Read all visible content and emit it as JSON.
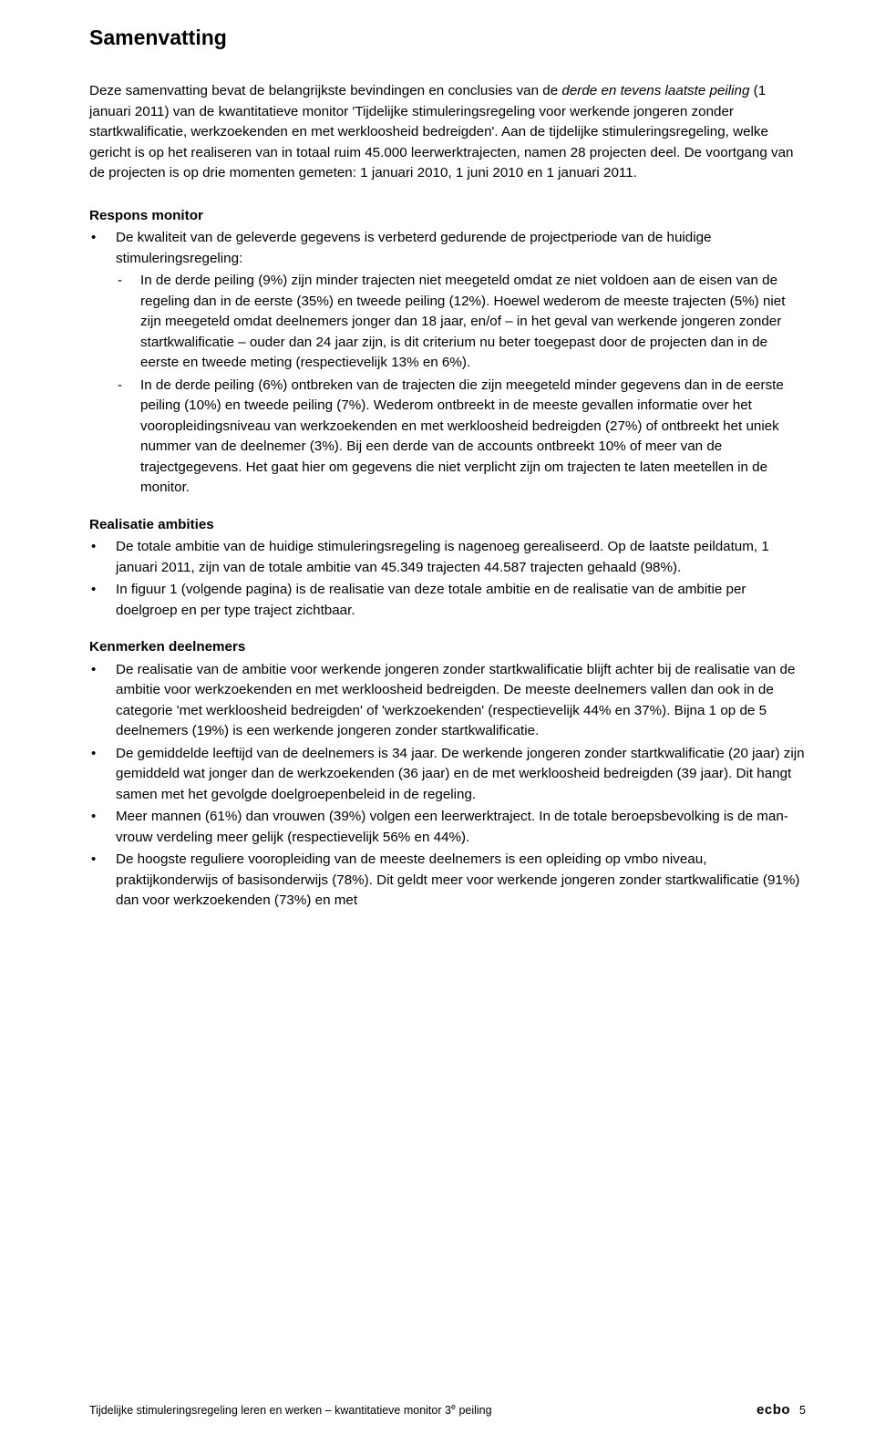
{
  "colors": {
    "text": "#000000",
    "background": "#ffffff"
  },
  "typography": {
    "body_font": "Arial",
    "body_size_pt": 11,
    "title_size_pt": 17,
    "line_height": 1.48
  },
  "title": "Samenvatting",
  "intro": {
    "pre_italic1": "Deze samenvatting bevat de belangrijkste bevindingen en conclusies van de ",
    "italic1": "derde en tevens laatste peiling",
    "mid": " (1 januari 2011) van de kwantitatieve monitor 'Tijdelijke stimuleringsregeling voor werkende jongeren zonder startkwalificatie, werkzoekenden en met werkloosheid bedreigden'. Aan de tijdelijke stimuleringsregeling, welke gericht is op het realiseren van in totaal ruim 45.000 leerwerktrajecten, namen 28 projecten deel. De voortgang van de projecten is op drie momenten gemeten: 1 januari 2010, 1 juni 2010 en 1 januari 2011."
  },
  "sections": {
    "respons": {
      "heading": "Respons monitor",
      "b0_lead": "De kwaliteit van de geleverde gegevens is verbeterd gedurende de projectperiode van de huidige stimuleringsregeling:",
      "b0_d0": "In de derde peiling (9%) zijn minder trajecten niet meegeteld omdat ze niet voldoen aan de eisen van de regeling dan in de eerste (35%) en tweede peiling (12%). Hoewel wederom de meeste trajecten (5%) niet zijn meegeteld omdat deelnemers jonger dan 18 jaar, en/of – in het geval van werkende jongeren zonder startkwalificatie – ouder dan 24 jaar zijn, is dit criterium nu beter toegepast door de projecten dan in de eerste en tweede meting (respectievelijk 13% en 6%).",
      "b0_d1": "In de derde peiling (6%) ontbreken van de trajecten die zijn meegeteld minder gegevens dan in de eerste peiling (10%) en tweede peiling (7%). Wederom ontbreekt in de meeste gevallen informatie over het vooropleidingsniveau van werkzoekenden en met werkloosheid bedreigden (27%) of ontbreekt het uniek nummer van de deelnemer (3%). Bij een derde van de accounts ontbreekt 10% of meer van de trajectgegevens. Het gaat hier om gegevens die niet verplicht zijn om trajecten te laten meetellen in de monitor."
    },
    "realisatie": {
      "heading": "Realisatie ambities",
      "b0": "De totale ambitie van de huidige stimuleringsregeling is nagenoeg gerealiseerd. Op de laatste peildatum, 1 januari 2011, zijn van de totale ambitie van 45.349 trajecten 44.587 trajecten gehaald (98%).",
      "b1": "In figuur 1 (volgende pagina) is de realisatie van deze totale ambitie en de realisatie van de ambitie per doelgroep en per type traject zichtbaar."
    },
    "kenmerken": {
      "heading": "Kenmerken deelnemers",
      "b0": "De realisatie van de ambitie voor werkende jongeren zonder startkwalificatie blijft achter bij de realisatie van de ambitie voor werkzoekenden en met werkloosheid bedreigden. De meeste deelnemers vallen dan ook in de categorie 'met werkloosheid bedreigden' of 'werkzoekenden' (respectievelijk 44% en 37%). Bijna 1 op de 5 deelnemers (19%) is een werkende jongeren zonder startkwalificatie.",
      "b1": "De gemiddelde leeftijd van de deelnemers is 34 jaar. De werkende jongeren zonder startkwalificatie (20 jaar) zijn gemiddeld wat jonger dan de werkzoekenden (36 jaar) en de met werkloosheid bedreigden (39 jaar). Dit hangt samen met het gevolgde doelgroepenbeleid in de regeling.",
      "b2": "Meer mannen (61%) dan vrouwen (39%) volgen een leerwerktraject. In de totale beroepsbevolking is de man-vrouw verdeling meer gelijk (respectievelijk 56% en 44%).",
      "b3": "De hoogste reguliere vooropleiding van de meeste deelnemers is een opleiding op vmbo niveau, praktijkonderwijs of basisonderwijs (78%). Dit geldt meer voor werkende jongeren zonder startkwalificatie (91%) dan voor werkzoekenden (73%) en met"
    }
  },
  "footer": {
    "left_pre": "Tijdelijke stimuleringsregeling leren en werken – kwantitatieve monitor 3",
    "left_sup": "e",
    "left_post": " peiling",
    "brand": "ecbo",
    "page": "5"
  }
}
